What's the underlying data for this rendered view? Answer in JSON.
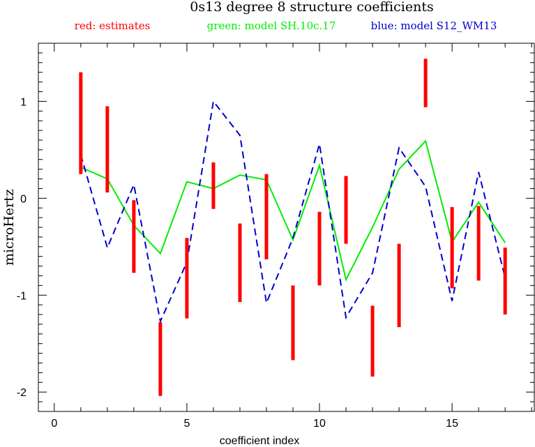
{
  "chart_data": {
    "type": "line",
    "title": "0s13 degree 8 structure coefficients",
    "xlabel": "coefficient index",
    "ylabel": "microHertz",
    "xlim": [
      -0.6,
      18.1
    ],
    "ylim": [
      -2.2,
      1.6
    ],
    "xticks": [
      0,
      5,
      10,
      15
    ],
    "yticks": [
      -2,
      -1,
      0,
      1
    ],
    "xtick_labels": [
      "0",
      "5",
      "10",
      "15"
    ],
    "ytick_labels": [
      "-2",
      "-1",
      "0",
      "1"
    ],
    "grid": false,
    "legend": [
      {
        "label": "red: estimates",
        "color": "#ff0000"
      },
      {
        "label": "green: model SH.10c.17",
        "color": "#00ee00"
      },
      {
        "label": "blue: model S12_WM13",
        "color": "#0000cc"
      }
    ],
    "estimates": {
      "name": "red: estimates",
      "color": "#ff0000",
      "x": [
        1,
        2,
        3,
        4,
        5,
        6,
        7,
        8,
        9,
        10,
        11,
        12,
        13,
        14,
        15,
        16,
        17
      ],
      "low": [
        0.25,
        0.06,
        -0.77,
        -2.04,
        -1.24,
        -0.11,
        -1.07,
        -0.63,
        -1.67,
        -0.9,
        -0.47,
        -1.84,
        -1.33,
        0.94,
        -0.93,
        -0.85,
        -1.2
      ],
      "high": [
        1.3,
        0.95,
        -0.02,
        -1.28,
        -0.41,
        0.37,
        -0.26,
        0.25,
        -0.9,
        -0.14,
        0.23,
        -1.11,
        -0.47,
        1.44,
        -0.09,
        -0.08,
        -0.51
      ]
    },
    "series": [
      {
        "name": "green: model SH.10c.17",
        "color": "#00ee00",
        "style": "solid",
        "x": [
          1,
          2,
          3,
          4,
          5,
          6,
          7,
          8,
          9,
          10,
          11,
          12,
          13,
          14,
          15,
          16,
          17
        ],
        "values": [
          0.32,
          0.2,
          -0.28,
          -0.57,
          0.17,
          0.1,
          0.24,
          0.19,
          -0.43,
          0.34,
          -0.84,
          -0.3,
          0.3,
          0.59,
          -0.45,
          -0.04,
          -0.46
        ]
      },
      {
        "name": "blue: model S12_WM13",
        "color": "#0000cc",
        "style": "dashed",
        "x": [
          1,
          2,
          3,
          4,
          5,
          6,
          7,
          8,
          9,
          10,
          11,
          12,
          13,
          14,
          15,
          16,
          17
        ],
        "values": [
          0.45,
          -0.51,
          0.14,
          -1.27,
          -0.66,
          1.0,
          0.65,
          -1.08,
          -0.41,
          0.56,
          -1.23,
          -0.77,
          0.52,
          0.12,
          -1.06,
          0.27,
          -0.82
        ]
      }
    ]
  }
}
